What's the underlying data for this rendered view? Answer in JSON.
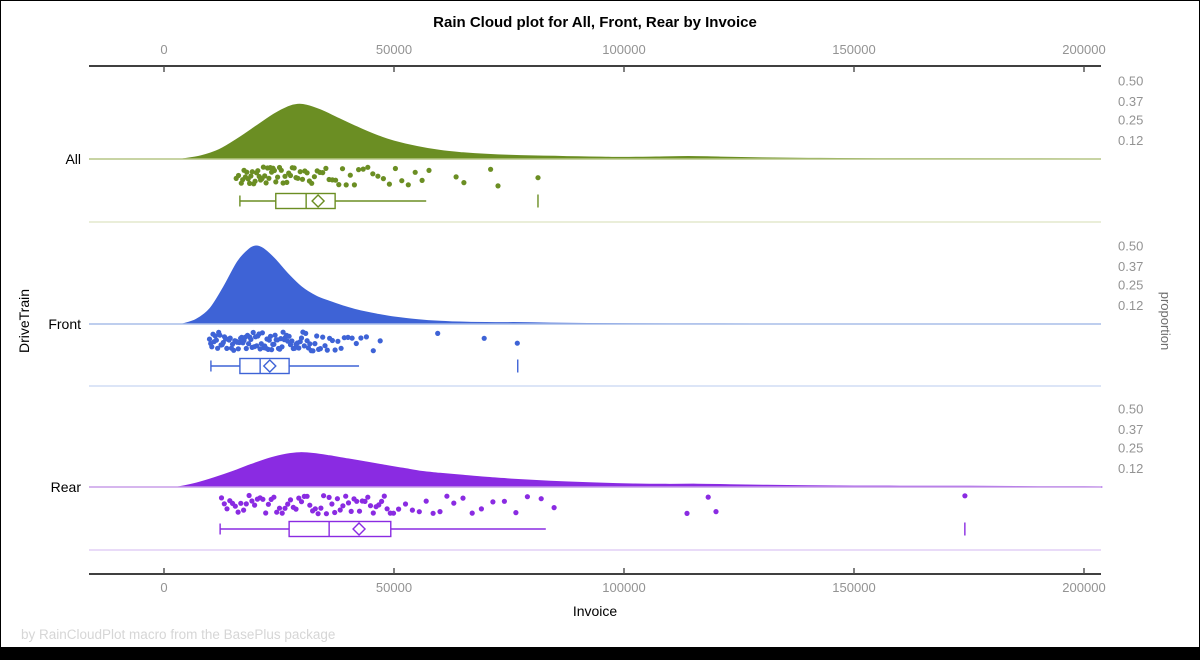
{
  "title": "Rain Cloud plot for All, Front, Rear by Invoice",
  "footer": "by RainCloudPlot macro from the BasePlus package",
  "chart_data": {
    "type": "raincloud (density area + jittered scatter + boxplot)",
    "title": "Rain Cloud plot for All, Front, Rear by Invoice",
    "xlabel": "Invoice",
    "ylabel": "DriveTrain",
    "y2label": "proportion",
    "grid": false,
    "x_axis": {
      "min": 0,
      "max": 200000,
      "ticks": [
        0,
        50000,
        100000,
        150000,
        200000
      ],
      "tick_labels": [
        "0",
        "50000",
        "100000",
        "150000",
        "200000"
      ]
    },
    "proportion_axis": {
      "tick_values": [
        0.5,
        0.37,
        0.25,
        0.12
      ],
      "tick_labels": [
        "0.50",
        "0.37",
        "0.25",
        "0.12"
      ]
    },
    "categories": [
      "All",
      "Front",
      "Rear"
    ],
    "groups": [
      {
        "name": "All",
        "color": "#6B8E23",
        "baseline_color": "#b6c585",
        "separator_color": "#dde4c2",
        "density": [
          [
            4000,
            0
          ],
          [
            8000,
            0.02
          ],
          [
            12000,
            0.06
          ],
          [
            16000,
            0.13
          ],
          [
            20000,
            0.21
          ],
          [
            24000,
            0.29
          ],
          [
            27000,
            0.335
          ],
          [
            29000,
            0.35
          ],
          [
            31000,
            0.345
          ],
          [
            34000,
            0.315
          ],
          [
            38000,
            0.26
          ],
          [
            42000,
            0.205
          ],
          [
            46000,
            0.155
          ],
          [
            50000,
            0.115
          ],
          [
            55000,
            0.08
          ],
          [
            60000,
            0.055
          ],
          [
            65000,
            0.04
          ],
          [
            70000,
            0.03
          ],
          [
            75000,
            0.024
          ],
          [
            80000,
            0.02
          ],
          [
            85000,
            0.017
          ],
          [
            90000,
            0.014
          ],
          [
            95000,
            0.012
          ],
          [
            100000,
            0.01
          ],
          [
            107000,
            0.013
          ],
          [
            114000,
            0.016
          ],
          [
            121000,
            0.012
          ],
          [
            130000,
            0.007
          ],
          [
            142000,
            0.004
          ],
          [
            155000,
            0.002
          ],
          [
            170000,
            0.001
          ],
          [
            185000,
            0.0005
          ],
          [
            200000,
            0.0003
          ],
          [
            203000,
            0
          ]
        ],
        "rain": [
          15700,
          16200,
          16800,
          17100,
          17400,
          17700,
          18000,
          18300,
          18600,
          18900,
          19200,
          19500,
          19800,
          20100,
          20400,
          20700,
          21000,
          21300,
          21600,
          21900,
          22200,
          22500,
          22800,
          23100,
          23400,
          23700,
          24000,
          24300,
          24700,
          25100,
          25500,
          25900,
          26300,
          26700,
          27100,
          27500,
          27900,
          28300,
          28700,
          29100,
          29600,
          30100,
          30600,
          31100,
          31600,
          32100,
          32700,
          33300,
          33900,
          34500,
          35200,
          35900,
          36600,
          37300,
          38000,
          38800,
          39600,
          40500,
          41400,
          42300,
          43300,
          44300,
          45400,
          46500,
          47700,
          49000,
          50300,
          51700,
          53100,
          54600,
          56100,
          57600,
          63500,
          65200,
          71000,
          72600,
          81300
        ],
        "box": {
          "whisker_low": 16500,
          "q1": 24300,
          "median": 30900,
          "mean": 33500,
          "q3": 37200,
          "whisker_high": 57000,
          "outliers": [
            81300
          ]
        }
      },
      {
        "name": "Front",
        "color": "#3E63D6",
        "baseline_color": "#a8bee9",
        "separator_color": "#c7d5f2",
        "density": [
          [
            4000,
            0
          ],
          [
            7000,
            0.03
          ],
          [
            10000,
            0.1
          ],
          [
            13000,
            0.24
          ],
          [
            16000,
            0.4
          ],
          [
            18500,
            0.48
          ],
          [
            20000,
            0.5
          ],
          [
            21500,
            0.485
          ],
          [
            24000,
            0.42
          ],
          [
            27000,
            0.32
          ],
          [
            30000,
            0.235
          ],
          [
            33000,
            0.18
          ],
          [
            36000,
            0.145
          ],
          [
            39000,
            0.115
          ],
          [
            42000,
            0.09
          ],
          [
            46000,
            0.065
          ],
          [
            50000,
            0.045
          ],
          [
            55000,
            0.028
          ],
          [
            60000,
            0.017
          ],
          [
            66000,
            0.011
          ],
          [
            72000,
            0.009
          ],
          [
            78000,
            0.009
          ],
          [
            84000,
            0.006
          ],
          [
            92000,
            0.003
          ],
          [
            102000,
            0.0015
          ],
          [
            115000,
            0.0008
          ],
          [
            128000,
            0
          ]
        ],
        "rain": [
          9900,
          10150,
          10400,
          10650,
          10900,
          11150,
          11400,
          11650,
          11900,
          12150,
          12400,
          12650,
          12900,
          13150,
          13400,
          13650,
          13900,
          14150,
          14400,
          14650,
          14900,
          15150,
          15400,
          15650,
          15900,
          16150,
          16400,
          16650,
          16900,
          17150,
          17400,
          17650,
          17900,
          18150,
          18400,
          18650,
          18900,
          19150,
          19400,
          19650,
          19900,
          20150,
          20400,
          20650,
          20900,
          21150,
          21400,
          21650,
          21900,
          22150,
          22400,
          22650,
          22900,
          23150,
          23400,
          23650,
          23900,
          24150,
          24400,
          24650,
          24900,
          25150,
          25400,
          25650,
          25900,
          26150,
          26400,
          26650,
          26900,
          27200,
          27500,
          27800,
          28100,
          28400,
          28700,
          29000,
          29300,
          29600,
          29900,
          30200,
          30500,
          30800,
          31100,
          31400,
          31700,
          32000,
          32400,
          32800,
          33200,
          33600,
          34000,
          34500,
          35000,
          35500,
          36000,
          36600,
          37200,
          37800,
          38500,
          39200,
          40000,
          40900,
          41800,
          42800,
          44000,
          45500,
          47000,
          59500,
          69600,
          76800
        ],
        "box": {
          "whisker_low": 10200,
          "q1": 16500,
          "median": 20900,
          "mean": 23000,
          "q3": 27200,
          "whisker_high": 42400,
          "outliers": [
            76900
          ]
        }
      },
      {
        "name": "Rear",
        "color": "#8A2BE2",
        "baseline_color": "#c89ee9",
        "separator_color": "#dcc5f3",
        "density": [
          [
            3000,
            0
          ],
          [
            7000,
            0.025
          ],
          [
            11000,
            0.06
          ],
          [
            15000,
            0.1
          ],
          [
            19000,
            0.145
          ],
          [
            23000,
            0.185
          ],
          [
            26500,
            0.21
          ],
          [
            29500,
            0.22
          ],
          [
            32500,
            0.215
          ],
          [
            36000,
            0.2
          ],
          [
            40000,
            0.18
          ],
          [
            44000,
            0.16
          ],
          [
            48000,
            0.14
          ],
          [
            52000,
            0.12
          ],
          [
            56000,
            0.1
          ],
          [
            60000,
            0.088
          ],
          [
            65000,
            0.075
          ],
          [
            70000,
            0.062
          ],
          [
            76000,
            0.05
          ],
          [
            82000,
            0.04
          ],
          [
            88000,
            0.032
          ],
          [
            95000,
            0.025
          ],
          [
            102000,
            0.019
          ],
          [
            109000,
            0.017
          ],
          [
            116000,
            0.018
          ],
          [
            123000,
            0.015
          ],
          [
            131000,
            0.011
          ],
          [
            140000,
            0.008
          ],
          [
            150000,
            0.006
          ],
          [
            160000,
            0.005
          ],
          [
            170000,
            0.005
          ],
          [
            180000,
            0.004
          ],
          [
            190000,
            0.002
          ],
          [
            200000,
            0.001
          ],
          [
            204000,
            0
          ]
        ],
        "rain": [
          12500,
          13100,
          13700,
          14300,
          14900,
          15500,
          16100,
          16700,
          17300,
          17900,
          18500,
          19100,
          19700,
          20300,
          20900,
          21500,
          22100,
          22700,
          23300,
          23900,
          24500,
          25100,
          25700,
          26300,
          26900,
          27500,
          28100,
          28700,
          29300,
          29900,
          30500,
          31100,
          31700,
          32300,
          32900,
          33500,
          34100,
          34700,
          35300,
          35900,
          36500,
          37100,
          37700,
          38300,
          38900,
          39500,
          40100,
          40700,
          41300,
          41900,
          42500,
          43100,
          43700,
          44300,
          44900,
          45500,
          46100,
          46700,
          47300,
          47900,
          48500,
          49200,
          49900,
          51000,
          52500,
          54000,
          55500,
          57000,
          58500,
          60000,
          61500,
          63000,
          65000,
          67000,
          69000,
          71500,
          74000,
          76500,
          79000,
          82000,
          84800,
          113700,
          118300,
          120000,
          174100
        ],
        "box": {
          "whisker_low": 12200,
          "q1": 27200,
          "median": 35900,
          "mean": 42400,
          "q3": 49300,
          "whisker_high": 83000,
          "outliers": [
            174100
          ]
        }
      }
    ]
  }
}
